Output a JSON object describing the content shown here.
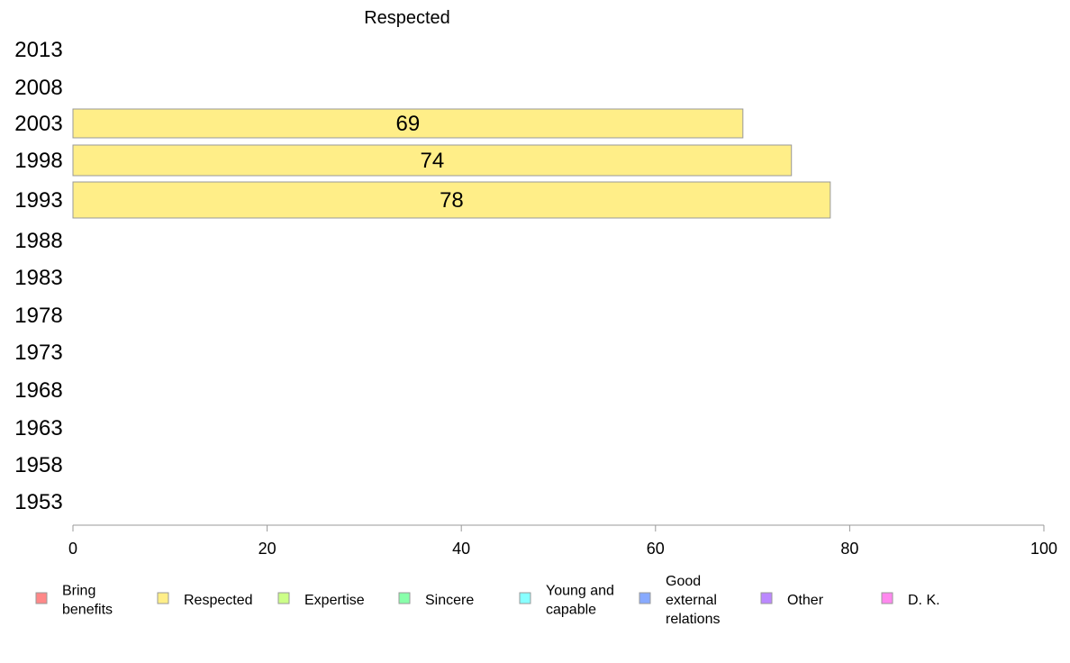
{
  "chart_data": {
    "type": "bar",
    "orientation": "horizontal",
    "title": "Respected",
    "categories": [
      "2013",
      "2008",
      "2003",
      "1998",
      "1993",
      "1988",
      "1983",
      "1978",
      "1973",
      "1968",
      "1963",
      "1958",
      "1953"
    ],
    "series": [
      {
        "name": "Respected",
        "color": "#ffee88",
        "values": [
          null,
          null,
          69,
          74,
          78,
          null,
          null,
          null,
          null,
          null,
          null,
          null,
          null
        ]
      }
    ],
    "xlim": [
      0,
      100
    ],
    "xticks": [
      "0",
      "20",
      "40",
      "60",
      "80",
      "100"
    ],
    "grid": false,
    "legend_position": "bottom",
    "legend": [
      {
        "label": "Bring benefits",
        "color": "#ff8888"
      },
      {
        "label": "Respected",
        "color": "#ffee88"
      },
      {
        "label": "Expertise",
        "color": "#ccff88"
      },
      {
        "label": "Sincere",
        "color": "#88ffaa"
      },
      {
        "label": "Young and capable",
        "color": "#88ffff"
      },
      {
        "label": "Good external relations",
        "color": "#88aaff"
      },
      {
        "label": "Other",
        "color": "#bb88ff"
      },
      {
        "label": "D. K.",
        "color": "#ff88ee"
      }
    ]
  }
}
